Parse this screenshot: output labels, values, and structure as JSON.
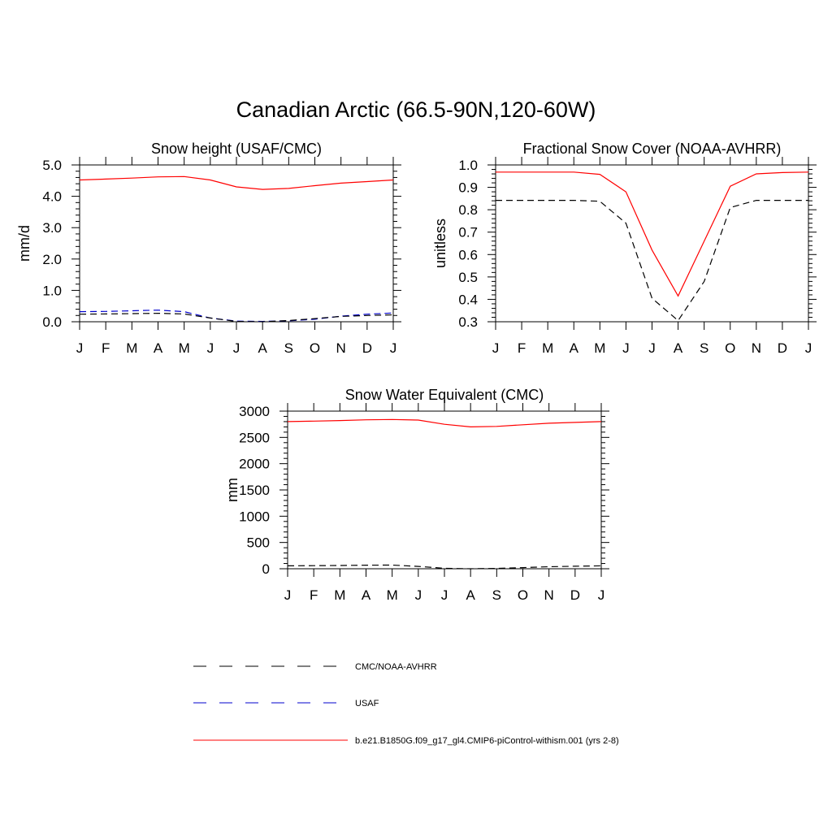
{
  "page": {
    "title": "Canadian Arctic (66.5-90N,120-60W)"
  },
  "colors": {
    "model": "#ff0000",
    "obs": "#000000",
    "usaf": "#0000cc"
  },
  "legend": {
    "items": [
      {
        "label": "CMC/NOAA-AVHRR",
        "color": "#000000",
        "dash": "dashed"
      },
      {
        "label": "USAF",
        "color": "#0000cc",
        "dash": "dashed"
      },
      {
        "label": "b.e21.B1850G.f09_g17_gl4.CMIP6-piControl-withism.001 (yrs 2-8)",
        "color": "#ff0000",
        "dash": "solid"
      }
    ]
  },
  "chart_data": [
    {
      "type": "line",
      "title": "Snow height (USAF/CMC)",
      "ylabel": "mm/d",
      "xlabel": "",
      "categories": [
        "J",
        "F",
        "M",
        "A",
        "M",
        "J",
        "J",
        "A",
        "S",
        "O",
        "N",
        "D",
        "J"
      ],
      "ylim": [
        0,
        5
      ],
      "yticks": [
        "0.0",
        "1.0",
        "2.0",
        "3.0",
        "4.0",
        "5.0"
      ],
      "series": [
        {
          "values": [
            4.52,
            4.55,
            4.58,
            4.62,
            4.63,
            4.52,
            4.3,
            4.22,
            4.25,
            4.34,
            4.42,
            4.47,
            4.52
          ],
          "color": "#ff0000",
          "dash": "solid"
        },
        {
          "values": [
            0.32,
            0.33,
            0.35,
            0.37,
            0.32,
            0.12,
            0.02,
            0.01,
            0.03,
            0.08,
            0.18,
            0.24,
            0.28
          ],
          "color": "#0000cc",
          "dash": "dashed"
        },
        {
          "values": [
            0.24,
            0.25,
            0.26,
            0.27,
            0.25,
            0.12,
            0.01,
            0.0,
            0.04,
            0.1,
            0.17,
            0.2,
            0.22
          ],
          "color": "#000000",
          "dash": "dashed"
        }
      ]
    },
    {
      "type": "line",
      "title": "Fractional Snow Cover (NOAA-AVHRR)",
      "ylabel": "unitless",
      "xlabel": "",
      "categories": [
        "J",
        "F",
        "M",
        "A",
        "M",
        "J",
        "J",
        "A",
        "S",
        "O",
        "N",
        "D",
        "J"
      ],
      "ylim": [
        0.3,
        1.0
      ],
      "yticks": [
        "0.3",
        "0.4",
        "0.5",
        "0.6",
        "0.7",
        "0.8",
        "0.9",
        "1.0"
      ],
      "series": [
        {
          "values": [
            0.968,
            0.968,
            0.968,
            0.968,
            0.958,
            0.88,
            0.62,
            0.415,
            0.66,
            0.905,
            0.96,
            0.966,
            0.968
          ],
          "color": "#ff0000",
          "dash": "solid"
        },
        {
          "values": [
            0.842,
            0.842,
            0.842,
            0.842,
            0.838,
            0.74,
            0.405,
            0.305,
            0.48,
            0.81,
            0.842,
            0.842,
            0.842
          ],
          "color": "#000000",
          "dash": "dashed"
        }
      ]
    },
    {
      "type": "line",
      "title": "Snow Water Equivalent (CMC)",
      "ylabel": "mm",
      "xlabel": "",
      "categories": [
        "J",
        "F",
        "M",
        "A",
        "M",
        "J",
        "J",
        "A",
        "S",
        "O",
        "N",
        "D",
        "J"
      ],
      "ylim": [
        0,
        3000
      ],
      "yticks": [
        "0",
        "500",
        "1000",
        "1500",
        "2000",
        "2500",
        "3000"
      ],
      "series": [
        {
          "values": [
            2800,
            2810,
            2820,
            2835,
            2840,
            2830,
            2750,
            2700,
            2710,
            2740,
            2770,
            2785,
            2800
          ],
          "color": "#ff0000",
          "dash": "solid"
        },
        {
          "values": [
            55,
            58,
            62,
            68,
            70,
            45,
            10,
            0,
            8,
            22,
            38,
            48,
            55
          ],
          "color": "#000000",
          "dash": "dashed"
        }
      ]
    }
  ]
}
